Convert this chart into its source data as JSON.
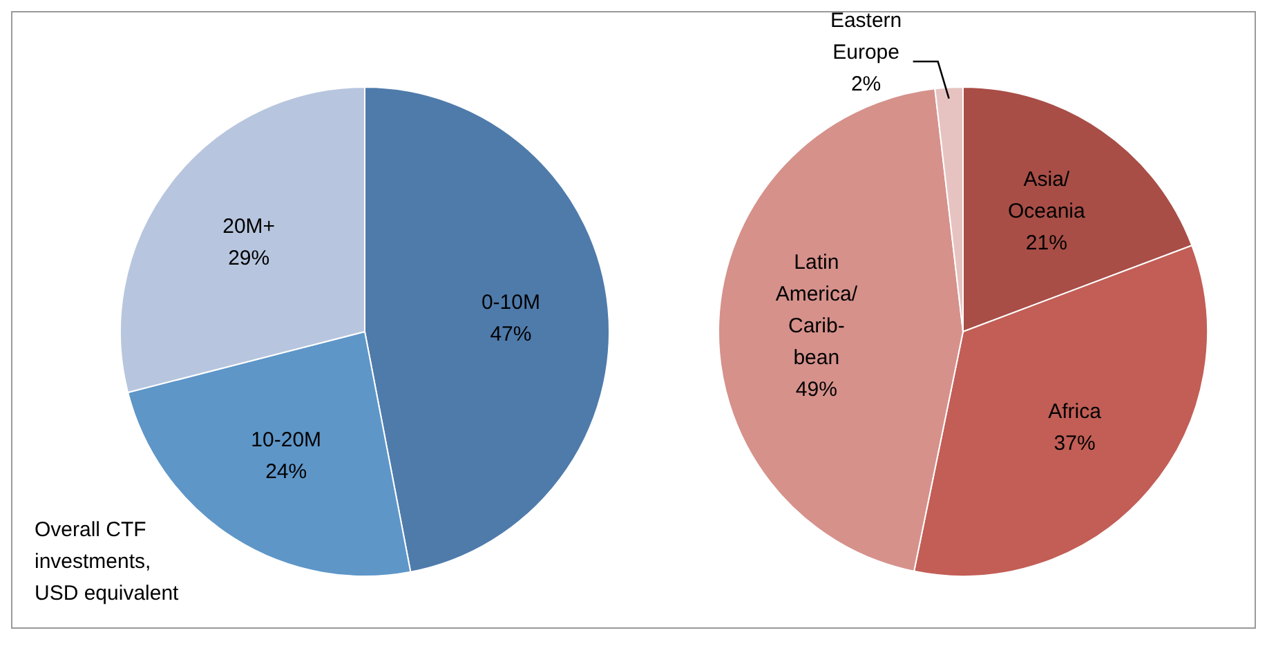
{
  "chart_data": [
    {
      "type": "pie",
      "categories": [
        "0-10M",
        "10-20M",
        "20M+"
      ],
      "values": [
        47,
        24,
        29
      ],
      "value_labels": [
        "47%",
        "24%",
        "29%"
      ],
      "colors": [
        "#4f7bab",
        "#5e96c8",
        "#b7c6de"
      ],
      "annotations": [
        "Overall CTF\ninvestments,\nUSD equivalent"
      ]
    },
    {
      "type": "pie",
      "categories": [
        "Asia/\nOceania",
        "Africa",
        "Latin\nAmerica/\nCarib-\nbean",
        "Eastern\nEurope"
      ],
      "values": [
        21,
        37,
        49,
        2
      ],
      "value_labels": [
        "21%",
        "37%",
        "49%",
        "2%"
      ],
      "colors": [
        "#a84e47",
        "#c25e56",
        "#d6918b",
        "#e6c3c1"
      ]
    }
  ]
}
